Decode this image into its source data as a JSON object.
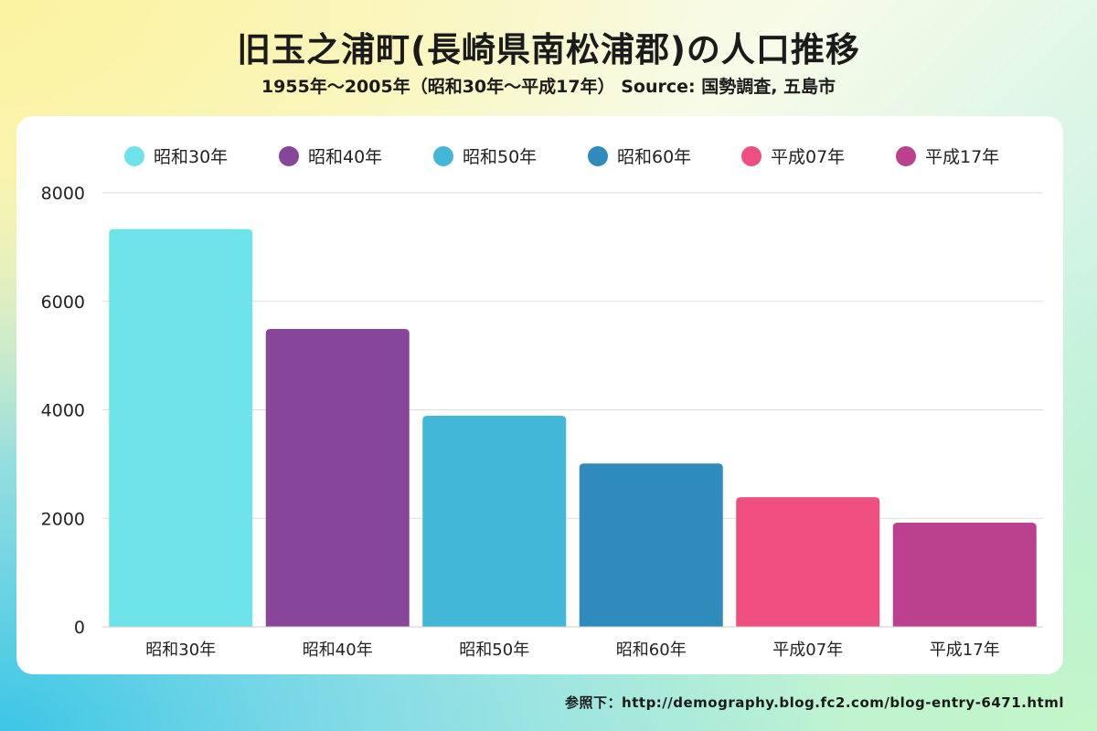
{
  "title": "旧玉之浦町(長崎県南松浦郡)の人口推移",
  "subtitle": "1955年〜2005年（昭和30年〜平成17年） Source: 国勢調査, 五島市",
  "footer": "参照下：http://demography.blog.fc2.com/blog-entry-6471.html",
  "chart_data": {
    "type": "bar",
    "title": "旧玉之浦町(長崎県南松浦郡)の人口推移",
    "xlabel": "",
    "ylabel": "",
    "categories": [
      "昭和30年",
      "昭和40年",
      "昭和50年",
      "昭和60年",
      "平成07年",
      "平成17年"
    ],
    "values": [
      7330,
      5490,
      3890,
      3010,
      2390,
      1920
    ],
    "colors": [
      "#6ee3e8",
      "#88469b",
      "#43b7d8",
      "#2e8bbb",
      "#ee4f80",
      "#bb418f"
    ],
    "ylim": [
      0,
      8000
    ],
    "yticks": [
      "0",
      "2000",
      "4000",
      "6000",
      "8000"
    ],
    "grid": true,
    "legend": "top"
  }
}
